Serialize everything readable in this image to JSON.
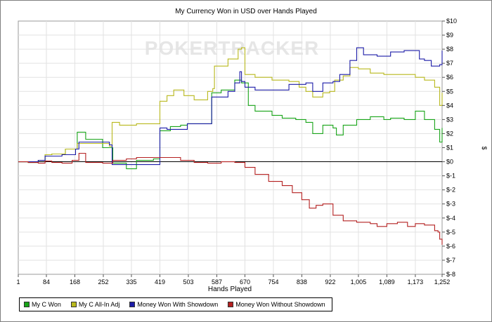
{
  "chart_data": {
    "type": "line",
    "title": "My Currency Won in USD over Hands Played",
    "xlabel": "Hands Played",
    "ylabel": "$",
    "watermark": "POKERTRACKER",
    "x_ticks": [
      "1",
      "84",
      "168",
      "252",
      "335",
      "419",
      "503",
      "587",
      "670",
      "754",
      "838",
      "922",
      "1,005",
      "1,089",
      "1,173",
      "1,252"
    ],
    "y_ticks": [
      "$10",
      "$9",
      "$8",
      "$7",
      "$6",
      "$5",
      "$4",
      "$3",
      "$2",
      "$1",
      "$0",
      "$-1",
      "$-2",
      "$-3",
      "$-4",
      "$-5",
      "$-6",
      "$-7",
      "$-8"
    ],
    "xlim": [
      1,
      1252
    ],
    "ylim": [
      -8,
      10
    ],
    "grid": true,
    "legend_position": "bottom",
    "series": [
      {
        "name": "My C Won",
        "color": "#18a418",
        "points": [
          [
            1,
            0
          ],
          [
            30,
            -0.05
          ],
          [
            60,
            0.1
          ],
          [
            80,
            0.5
          ],
          [
            100,
            0.55
          ],
          [
            140,
            0.9
          ],
          [
            175,
            2.1
          ],
          [
            200,
            1.6
          ],
          [
            250,
            1.0
          ],
          [
            280,
            -0.1
          ],
          [
            320,
            -0.5
          ],
          [
            350,
            0.1
          ],
          [
            400,
            0.2
          ],
          [
            415,
            0.2
          ],
          [
            419,
            2.2
          ],
          [
            450,
            2.5
          ],
          [
            480,
            2.6
          ],
          [
            500,
            2.7
          ],
          [
            560,
            2.7
          ],
          [
            568,
            2.7
          ],
          [
            572,
            4.9
          ],
          [
            600,
            5.1
          ],
          [
            640,
            5.8
          ],
          [
            660,
            5.6
          ],
          [
            680,
            4.0
          ],
          [
            700,
            3.6
          ],
          [
            750,
            3.3
          ],
          [
            780,
            3.1
          ],
          [
            820,
            3.0
          ],
          [
            850,
            2.8
          ],
          [
            870,
            2.0
          ],
          [
            900,
            2.6
          ],
          [
            930,
            2.4
          ],
          [
            940,
            1.9
          ],
          [
            960,
            2.6
          ],
          [
            1000,
            3.0
          ],
          [
            1040,
            3.2
          ],
          [
            1080,
            3.0
          ],
          [
            1100,
            3.1
          ],
          [
            1140,
            3.0
          ],
          [
            1173,
            3.6
          ],
          [
            1200,
            3.0
          ],
          [
            1230,
            2.3
          ],
          [
            1245,
            1.4
          ],
          [
            1252,
            2.4
          ]
        ]
      },
      {
        "name": "My C All-In Adj",
        "color": "#b8b81c",
        "points": [
          [
            1,
            0
          ],
          [
            30,
            -0.05
          ],
          [
            60,
            0.1
          ],
          [
            80,
            0.5
          ],
          [
            100,
            0.55
          ],
          [
            140,
            0.9
          ],
          [
            175,
            1.3
          ],
          [
            270,
            1.1
          ],
          [
            278,
            2.8
          ],
          [
            300,
            2.6
          ],
          [
            350,
            2.7
          ],
          [
            400,
            2.7
          ],
          [
            410,
            2.7
          ],
          [
            419,
            4.3
          ],
          [
            440,
            4.7
          ],
          [
            460,
            5.1
          ],
          [
            490,
            4.7
          ],
          [
            520,
            4.4
          ],
          [
            560,
            5.0
          ],
          [
            575,
            5.2
          ],
          [
            580,
            6.8
          ],
          [
            620,
            7.3
          ],
          [
            650,
            8.0
          ],
          [
            660,
            8.1
          ],
          [
            670,
            6.2
          ],
          [
            700,
            6.0
          ],
          [
            750,
            5.8
          ],
          [
            800,
            5.7
          ],
          [
            830,
            5.3
          ],
          [
            850,
            5.0
          ],
          [
            870,
            4.6
          ],
          [
            900,
            4.9
          ],
          [
            920,
            5.0
          ],
          [
            935,
            5.8
          ],
          [
            960,
            6.1
          ],
          [
            980,
            6.7
          ],
          [
            1005,
            6.6
          ],
          [
            1040,
            6.3
          ],
          [
            1080,
            6.2
          ],
          [
            1130,
            6.2
          ],
          [
            1173,
            6.0
          ],
          [
            1200,
            5.8
          ],
          [
            1230,
            5.3
          ],
          [
            1245,
            4.0
          ],
          [
            1252,
            4.9
          ]
        ]
      },
      {
        "name": "Money Won With Showdown",
        "color": "#1c1ca8",
        "points": [
          [
            1,
            0
          ],
          [
            60,
            0.1
          ],
          [
            80,
            0.4
          ],
          [
            130,
            0.5
          ],
          [
            170,
            0.9
          ],
          [
            180,
            1.4
          ],
          [
            270,
            1.2
          ],
          [
            278,
            -0.2
          ],
          [
            350,
            -0.2
          ],
          [
            410,
            -0.2
          ],
          [
            419,
            2.4
          ],
          [
            440,
            2.3
          ],
          [
            480,
            2.3
          ],
          [
            500,
            2.7
          ],
          [
            560,
            2.7
          ],
          [
            568,
            2.7
          ],
          [
            572,
            4.6
          ],
          [
            620,
            5.0
          ],
          [
            640,
            5.6
          ],
          [
            655,
            6.4
          ],
          [
            660,
            5.7
          ],
          [
            670,
            5.3
          ],
          [
            700,
            5.1
          ],
          [
            750,
            5.1
          ],
          [
            800,
            5.5
          ],
          [
            850,
            5.6
          ],
          [
            870,
            5.0
          ],
          [
            900,
            5.6
          ],
          [
            930,
            5.7
          ],
          [
            950,
            6.2
          ],
          [
            980,
            7.2
          ],
          [
            1000,
            8.1
          ],
          [
            1020,
            7.6
          ],
          [
            1060,
            7.5
          ],
          [
            1100,
            7.8
          ],
          [
            1140,
            7.9
          ],
          [
            1173,
            7.9
          ],
          [
            1185,
            7.3
          ],
          [
            1200,
            7.2
          ],
          [
            1220,
            6.8
          ],
          [
            1245,
            6.9
          ],
          [
            1252,
            7.9
          ]
        ]
      },
      {
        "name": "Money Won Without Showdown",
        "color": "#b42020",
        "points": [
          [
            1,
            0
          ],
          [
            30,
            -0.05
          ],
          [
            60,
            -0.1
          ],
          [
            80,
            0.05
          ],
          [
            100,
            -0.05
          ],
          [
            130,
            -0.1
          ],
          [
            160,
            0.1
          ],
          [
            180,
            0.6
          ],
          [
            200,
            -0.05
          ],
          [
            250,
            -0.1
          ],
          [
            280,
            0.1
          ],
          [
            320,
            0.2
          ],
          [
            350,
            0.3
          ],
          [
            400,
            0.3
          ],
          [
            440,
            0.3
          ],
          [
            480,
            0.1
          ],
          [
            520,
            -0.05
          ],
          [
            560,
            -0.1
          ],
          [
            600,
            0
          ],
          [
            640,
            -0.05
          ],
          [
            670,
            -0.4
          ],
          [
            700,
            -0.9
          ],
          [
            740,
            -1.4
          ],
          [
            780,
            -1.7
          ],
          [
            810,
            -2.2
          ],
          [
            838,
            -2.7
          ],
          [
            860,
            -3.3
          ],
          [
            880,
            -3.1
          ],
          [
            900,
            -3.0
          ],
          [
            930,
            -3.8
          ],
          [
            960,
            -4.2
          ],
          [
            1000,
            -4.3
          ],
          [
            1040,
            -4.4
          ],
          [
            1060,
            -4.6
          ],
          [
            1089,
            -4.4
          ],
          [
            1120,
            -4.3
          ],
          [
            1150,
            -4.6
          ],
          [
            1173,
            -4.4
          ],
          [
            1200,
            -4.5
          ],
          [
            1230,
            -4.9
          ],
          [
            1240,
            -5.0
          ],
          [
            1245,
            -5.5
          ],
          [
            1252,
            -5.9
          ]
        ]
      }
    ]
  }
}
